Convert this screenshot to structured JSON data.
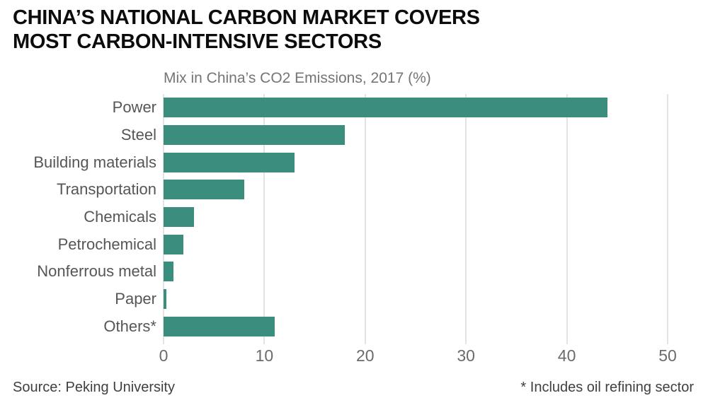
{
  "header": {
    "title_line1": "CHINA’S NATIONAL CARBON MARKET COVERS",
    "title_line2": "MOST CARBON-INTENSIVE SECTORS"
  },
  "chart_data": {
    "type": "bar",
    "orientation": "horizontal",
    "title": "Mix in China’s CO2 Emissions, 2017 (%)",
    "categories": [
      "Power",
      "Steel",
      "Building materials",
      "Transportation",
      "Chemicals",
      "Petrochemical",
      "Nonferrous metal",
      "Paper",
      "Others*"
    ],
    "values": [
      44,
      18,
      13,
      8,
      3,
      2,
      1,
      0.3,
      11
    ],
    "xlabel": "",
    "ylabel": "",
    "xlim": [
      0,
      50
    ],
    "xticks": [
      0,
      10,
      20,
      30,
      40,
      50
    ],
    "grid": true,
    "legend": "none",
    "bar_color": "#3b8d7d",
    "gridline_color": "#e3e3e3"
  },
  "footer": {
    "source": "Source: Peking University",
    "note": "* Includes oil refining sector"
  }
}
